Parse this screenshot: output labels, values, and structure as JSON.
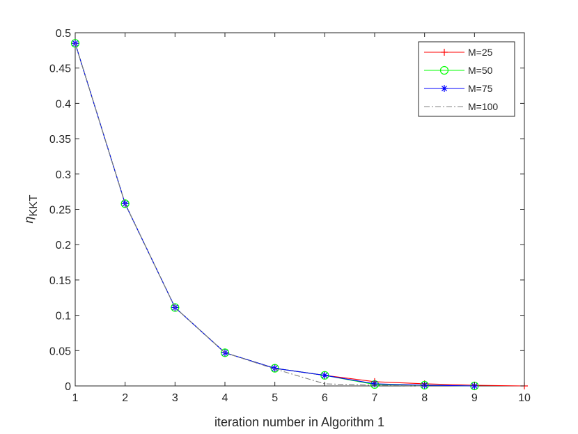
{
  "chart_data": {
    "type": "line",
    "xlabel": "iteration number in Algorithm 1",
    "ylabel_main": "η",
    "ylabel_sub": "KKT",
    "xlim": [
      1,
      10
    ],
    "ylim": [
      0,
      0.5
    ],
    "xticks": [
      "1",
      "2",
      "3",
      "4",
      "5",
      "6",
      "7",
      "8",
      "9",
      "10"
    ],
    "yticks": [
      "0",
      "0.05",
      "0.1",
      "0.15",
      "0.2",
      "0.25",
      "0.3",
      "0.35",
      "0.4",
      "0.45",
      "0.5"
    ],
    "grid": false,
    "legend_position": "top-right",
    "series": [
      {
        "name": "M=25",
        "color": "#ff0000",
        "marker": "plus",
        "dash": "solid",
        "x": [
          1,
          2,
          3,
          4,
          5,
          6,
          7,
          8,
          9,
          10
        ],
        "y": [
          0.485,
          0.258,
          0.111,
          0.047,
          0.025,
          0.015,
          0.006,
          0.003,
          0.001,
          0.0
        ]
      },
      {
        "name": "M=50",
        "color": "#00ff00",
        "marker": "circle",
        "dash": "solid",
        "x": [
          1,
          2,
          3,
          4,
          5,
          6,
          7,
          8,
          9
        ],
        "y": [
          0.485,
          0.258,
          0.111,
          0.047,
          0.025,
          0.015,
          0.002,
          0.001,
          0.0
        ]
      },
      {
        "name": "M=75",
        "color": "#0000ff",
        "marker": "asterisk",
        "dash": "solid",
        "x": [
          1,
          2,
          3,
          4,
          5,
          6,
          7,
          8,
          9
        ],
        "y": [
          0.485,
          0.258,
          0.111,
          0.047,
          0.025,
          0.015,
          0.003,
          0.001,
          0.0
        ]
      },
      {
        "name": "M=100",
        "color": "#808080",
        "marker": "none",
        "dash": "dashdot",
        "x": [
          1,
          2,
          3,
          4,
          5,
          6,
          7,
          8
        ],
        "y": [
          0.485,
          0.258,
          0.111,
          0.047,
          0.024,
          0.003,
          0.001,
          0.0
        ]
      }
    ]
  }
}
